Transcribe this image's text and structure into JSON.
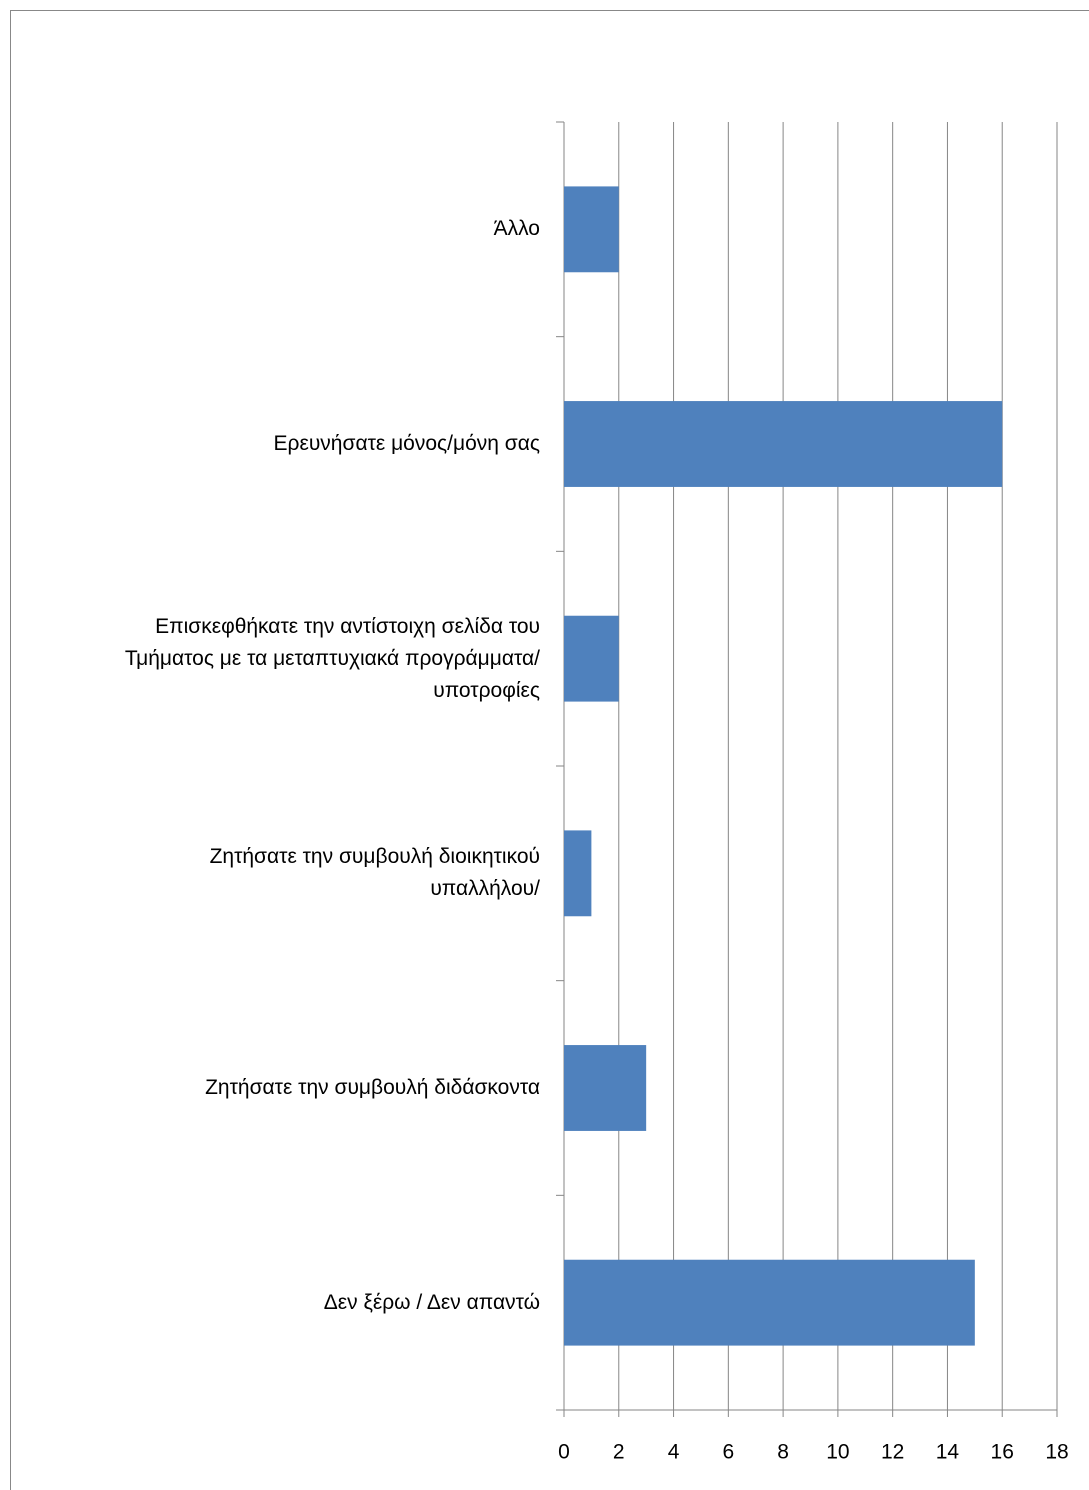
{
  "chart_data": {
    "type": "bar",
    "orientation": "horizontal",
    "categories": [
      "Άλλο",
      "Ερευνήσατε μόνος/μόνη σας",
      "Επισκεφθήκατε την αντίστοιχη σελίδα του\nΤμήματος με τα μεταπτυχιακά προγράμματα/\nυποτροφίες",
      "Ζητήσατε την συμβουλή διοικητικού\nυπαλλήλου/",
      "Ζητήσατε την συμβουλή διδάσκοντα",
      "Δεν ξέρω / Δεν απαντώ"
    ],
    "values": [
      2,
      16,
      2,
      1,
      3,
      15
    ],
    "color": "#4f81bd",
    "xlim": [
      0,
      18
    ],
    "xticks": [
      0,
      2,
      4,
      6,
      8,
      10,
      12,
      14,
      16,
      18
    ],
    "grid": true
  }
}
